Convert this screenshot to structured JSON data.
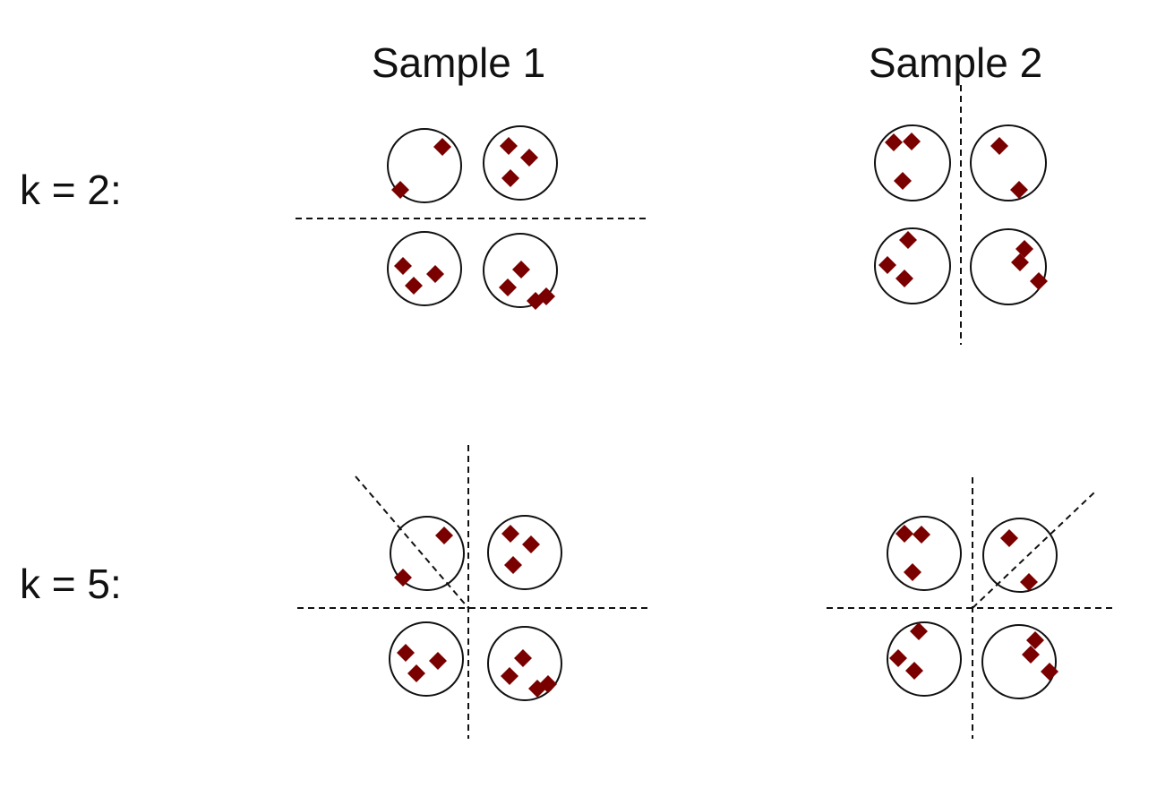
{
  "colors": {
    "point": "#7a0000",
    "circle": "#111111",
    "cut_line": "#111111",
    "background": "#ffffff"
  },
  "headers": {
    "sample1": "Sample 1",
    "sample2": "Sample 2"
  },
  "rows": {
    "k2": "k = 2:",
    "k5": "k = 5:"
  },
  "point_shape": "diamond"
}
